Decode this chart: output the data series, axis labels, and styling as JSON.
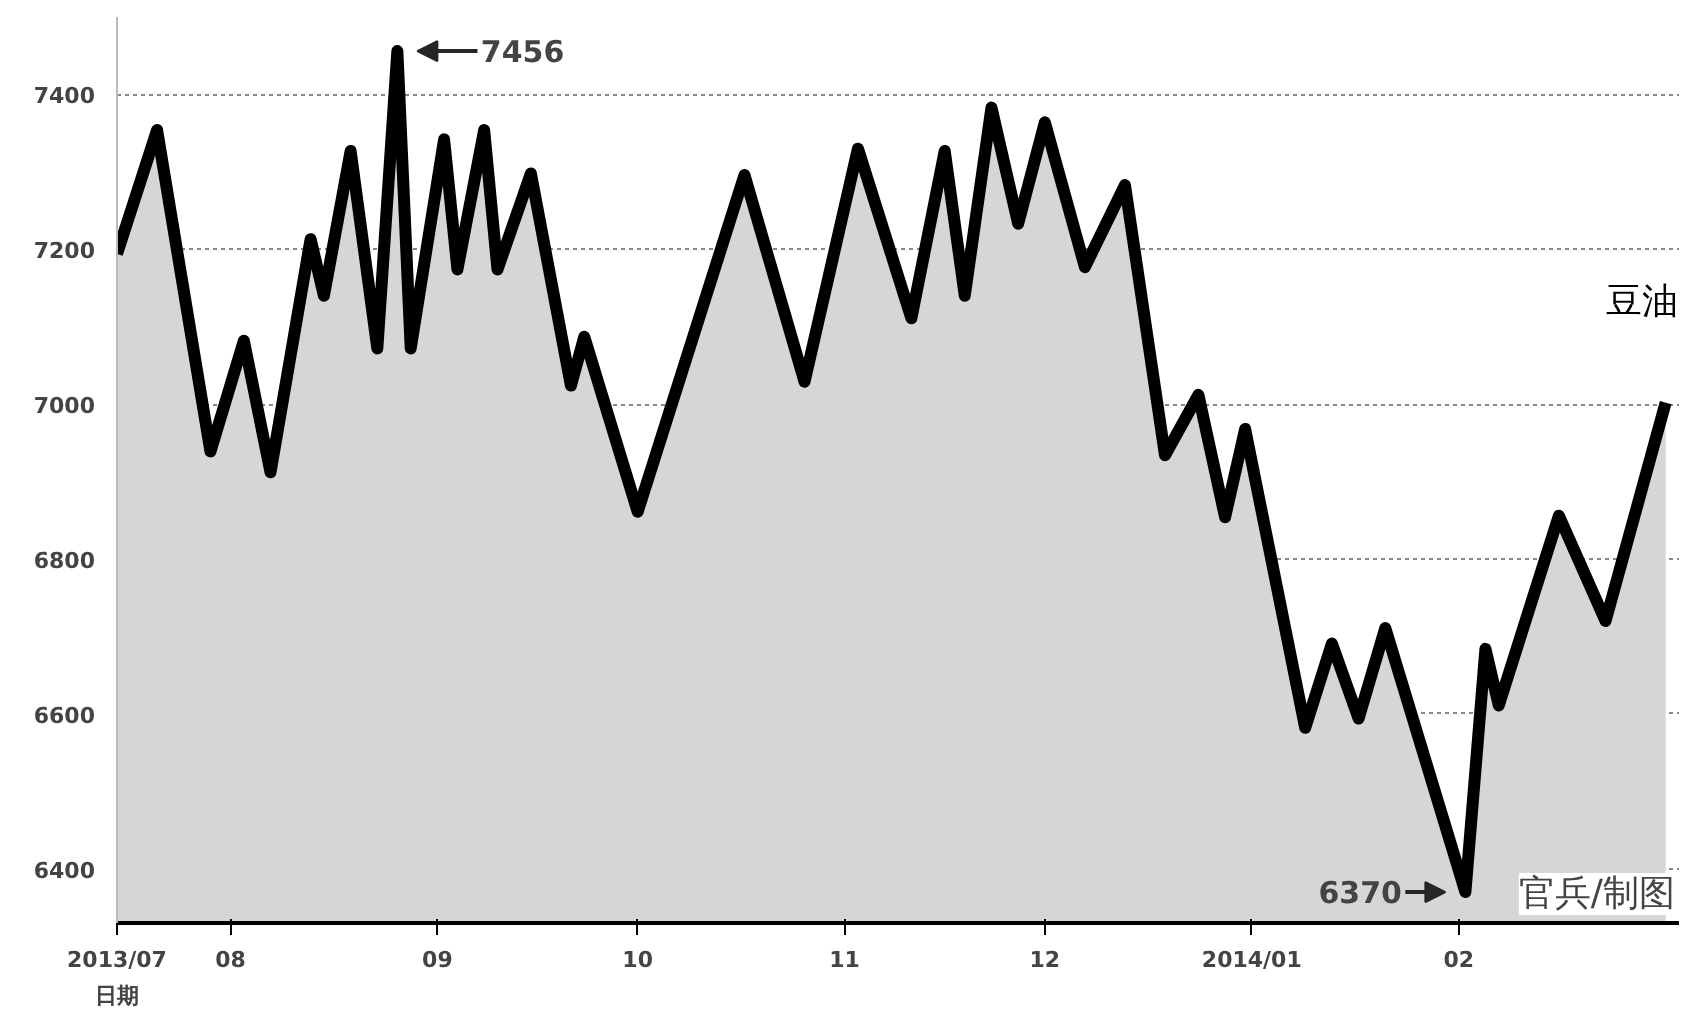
{
  "chart_data": {
    "type": "area",
    "x": [
      "2013-07-15",
      "2013-07-21",
      "2013-07-29",
      "2013-08-03",
      "2013-08-07",
      "2013-08-13",
      "2013-08-15",
      "2013-08-19",
      "2013-08-23",
      "2013-08-26",
      "2013-08-28",
      "2013-09-02",
      "2013-09-04",
      "2013-09-08",
      "2013-09-10",
      "2013-09-15",
      "2013-09-21",
      "2013-09-23",
      "2013-10-01",
      "2013-10-17",
      "2013-10-26",
      "2013-11-03",
      "2013-11-11",
      "2013-11-16",
      "2013-11-19",
      "2013-11-23",
      "2013-11-27",
      "2013-12-01",
      "2013-12-07",
      "2013-12-13",
      "2013-12-19",
      "2013-12-24",
      "2013-12-28",
      "2013-12-31",
      "2014-01-09",
      "2014-01-13",
      "2014-01-17",
      "2014-01-21",
      "2014-02-02",
      "2014-02-05",
      "2014-02-07",
      "2014-02-16",
      "2014-02-23",
      "2014-03-04"
    ],
    "series": [
      {
        "name": "豆油",
        "color": "#000000",
        "values": [
          7194,
          7354,
          6939,
          7082,
          6912,
          7213,
          7140,
          7327,
          7072,
          7456,
          7072,
          7342,
          7174,
          7354,
          7174,
          7298,
          7024,
          7087,
          6861,
          7296,
          7029,
          7330,
          7111,
          7327,
          7140,
          7383,
          7233,
          7364,
          7177,
          7283,
          6934,
          7012,
          6854,
          6968,
          6582,
          6691,
          6594,
          6711,
          6370,
          6684,
          6611,
          6856,
          6720,
          7002
        ]
      }
    ],
    "xlim": [
      "2013-07-15",
      "2014-03-06"
    ],
    "ylim": [
      6330,
      7500
    ],
    "xlabel": "日期",
    "xticks": [
      {
        "value": "2013-07-15",
        "label": "2013/07"
      },
      {
        "value": "2013-08-01",
        "label": "08"
      },
      {
        "value": "2013-09-01",
        "label": "09"
      },
      {
        "value": "2013-10-01",
        "label": "10"
      },
      {
        "value": "2013-11-01",
        "label": "11"
      },
      {
        "value": "2013-12-01",
        "label": "12"
      },
      {
        "value": "2014-01-01",
        "label": "2014/01"
      },
      {
        "value": "2014-02-01",
        "label": "02"
      }
    ],
    "yticks": [
      6400,
      6600,
      6800,
      7000,
      7200,
      7400
    ],
    "grid": "y",
    "annotations": [
      {
        "text": "7456",
        "x": "2013-08-26",
        "y": 7456
      },
      {
        "text": "6370",
        "x": "2014-02-02",
        "y": 6370
      },
      "官兵/制图"
    ]
  }
}
